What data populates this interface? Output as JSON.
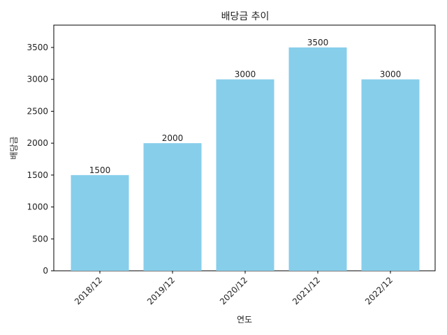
{
  "chart_data": {
    "type": "bar",
    "title": "배당금 추이",
    "xlabel": "연도",
    "ylabel": "배당금",
    "categories": [
      "2018/12",
      "2019/12",
      "2020/12",
      "2021/12",
      "2022/12"
    ],
    "values": [
      1500,
      2000,
      3000,
      3500,
      3000
    ],
    "data_labels": [
      "1500",
      "2000",
      "3000",
      "3500",
      "3000"
    ],
    "ylim": [
      0,
      3850
    ],
    "yticks": [
      0,
      500,
      1000,
      1500,
      2000,
      2500,
      3000,
      3500
    ],
    "ytick_labels": [
      "0",
      "500",
      "1000",
      "1500",
      "2000",
      "2500",
      "3000",
      "3500"
    ],
    "bar_color": "#87ceeb",
    "grid": false,
    "legend": "none"
  }
}
